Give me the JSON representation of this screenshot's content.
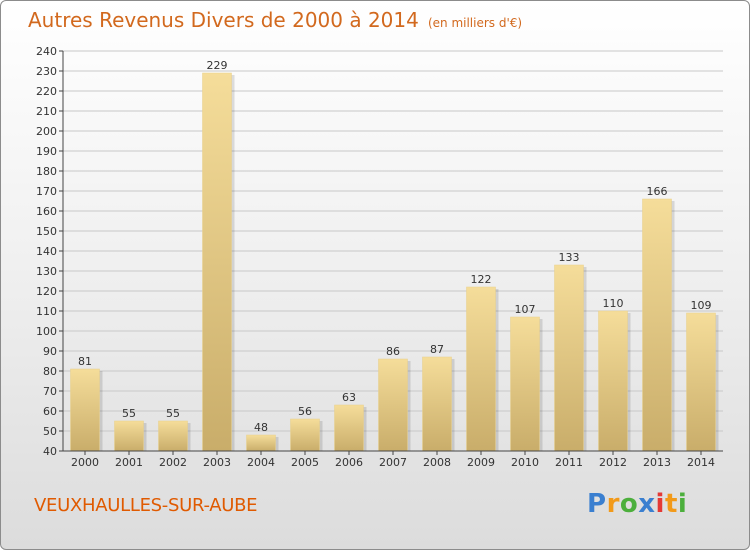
{
  "header": {
    "title": "Autres Revenus Divers de 2000 à 2014",
    "subtitle": "(en milliers d'€)"
  },
  "commune": "VEUXHAULLES-SUR-AUBE",
  "logo": {
    "letters": [
      "P",
      "r",
      "o",
      "x",
      "i",
      "t",
      "i"
    ],
    "colors": [
      "#3a7fd0",
      "#f29a1a",
      "#4caf3c",
      "#3a7fd0",
      "#e53935",
      "#f29a1a",
      "#4caf3c"
    ]
  },
  "colors": {
    "bar_fill_light": "#f5dd9a",
    "bar_fill_dark": "#c9ad6a",
    "grid": "#c8c8c8",
    "axis": "#444444",
    "title": "#d2691e"
  },
  "chart_data": {
    "type": "bar",
    "categories": [
      "2000",
      "2001",
      "2002",
      "2003",
      "2004",
      "2005",
      "2006",
      "2007",
      "2008",
      "2009",
      "2010",
      "2011",
      "2012",
      "2013",
      "2014"
    ],
    "values": [
      81,
      55,
      55,
      229,
      48,
      56,
      63,
      86,
      87,
      122,
      107,
      133,
      110,
      166,
      109
    ],
    "yticks": [
      40,
      50,
      60,
      70,
      80,
      90,
      100,
      110,
      120,
      130,
      140,
      150,
      160,
      170,
      180,
      190,
      200,
      210,
      220,
      230,
      240
    ],
    "ylim": [
      40,
      240
    ],
    "grid": true
  }
}
